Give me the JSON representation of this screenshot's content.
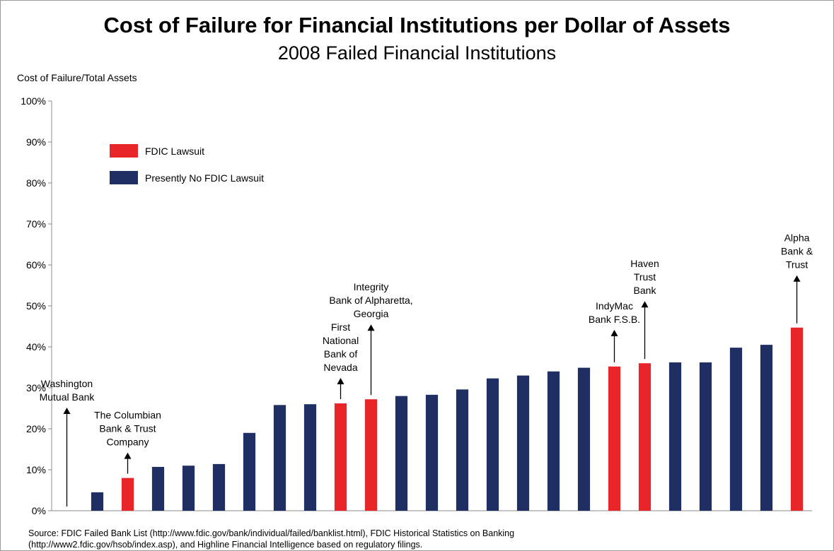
{
  "chart_data": {
    "type": "bar",
    "title": "Cost of Failure for Financial Institutions per Dollar of Assets",
    "subtitle": "2008 Failed Financial Institutions",
    "ylabel": "Cost of Failure/Total  Assets",
    "xlabel": "",
    "ylim": [
      0,
      1.0
    ],
    "yticks": [
      "0%",
      "10%",
      "20%",
      "30%",
      "40%",
      "50%",
      "60%",
      "70%",
      "80%",
      "90%",
      "100%"
    ],
    "grid": false,
    "legend_position": "top-left",
    "colors": {
      "lawsuit": "#e8262a",
      "no_lawsuit": "#1f2f63"
    },
    "legend": [
      {
        "key": "lawsuit",
        "label": "FDIC Lawsuit"
      },
      {
        "key": "no_lawsuit",
        "label": "Presently No FDIC Lawsuit"
      }
    ],
    "bars": [
      {
        "value": 0.0,
        "group": "no_lawsuit",
        "label": [
          "Washington",
          "Mutual Bank"
        ]
      },
      {
        "value": 0.045,
        "group": "no_lawsuit"
      },
      {
        "value": 0.08,
        "group": "lawsuit",
        "label": [
          "The Columbian",
          "Bank & Trust",
          "Company"
        ]
      },
      {
        "value": 0.107,
        "group": "no_lawsuit"
      },
      {
        "value": 0.11,
        "group": "no_lawsuit"
      },
      {
        "value": 0.114,
        "group": "no_lawsuit"
      },
      {
        "value": 0.19,
        "group": "no_lawsuit"
      },
      {
        "value": 0.258,
        "group": "no_lawsuit"
      },
      {
        "value": 0.26,
        "group": "no_lawsuit"
      },
      {
        "value": 0.262,
        "group": "lawsuit",
        "label": [
          "First",
          "National",
          "Bank of",
          "Nevada"
        ]
      },
      {
        "value": 0.272,
        "group": "lawsuit",
        "label": [
          "Integrity",
          "Bank of Alpharetta,",
          "Georgia"
        ]
      },
      {
        "value": 0.28,
        "group": "no_lawsuit"
      },
      {
        "value": 0.283,
        "group": "no_lawsuit"
      },
      {
        "value": 0.296,
        "group": "no_lawsuit"
      },
      {
        "value": 0.323,
        "group": "no_lawsuit"
      },
      {
        "value": 0.33,
        "group": "no_lawsuit"
      },
      {
        "value": 0.34,
        "group": "no_lawsuit"
      },
      {
        "value": 0.349,
        "group": "no_lawsuit"
      },
      {
        "value": 0.352,
        "group": "lawsuit",
        "label": [
          "IndyMac",
          "Bank F.S.B."
        ]
      },
      {
        "value": 0.36,
        "group": "lawsuit",
        "label": [
          "Haven",
          "Trust",
          "Bank"
        ]
      },
      {
        "value": 0.362,
        "group": "no_lawsuit"
      },
      {
        "value": 0.362,
        "group": "no_lawsuit"
      },
      {
        "value": 0.398,
        "group": "no_lawsuit"
      },
      {
        "value": 0.405,
        "group": "no_lawsuit"
      },
      {
        "value": 0.447,
        "group": "lawsuit",
        "label": [
          "Alpha",
          "Bank &",
          "Trust"
        ]
      }
    ]
  },
  "source": {
    "line1": "Source: FDIC Failed Bank List (http://www.fdic.gov/bank/individual/failed/banklist.html), FDIC Historical Statistics on Banking",
    "line2": "(http://www2.fdic.gov/hsob/index.asp), and Highline Financial Intelligence based on regulatory filings."
  }
}
